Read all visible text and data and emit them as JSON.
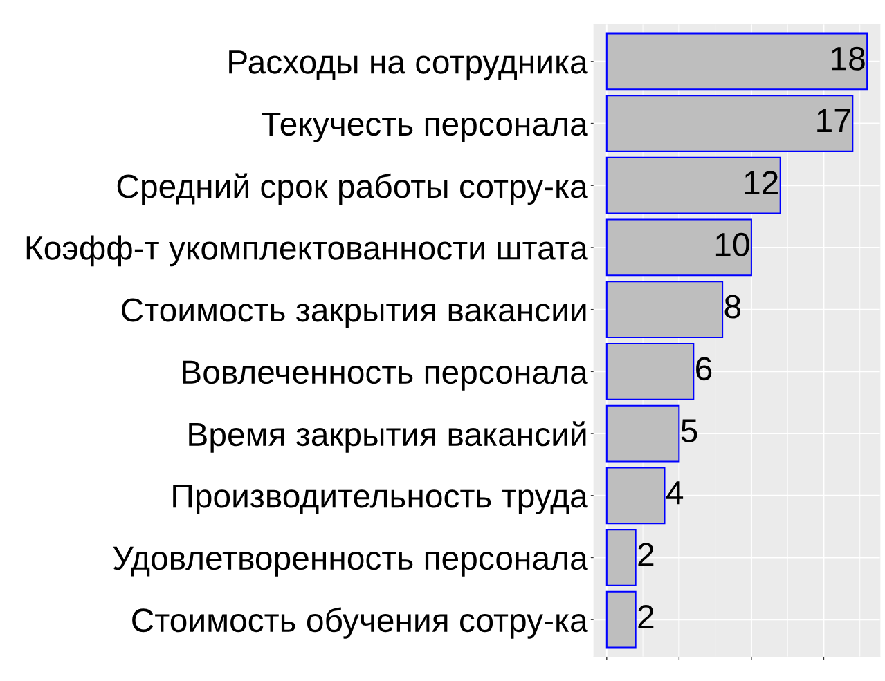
{
  "chart_data": {
    "type": "bar",
    "orientation": "horizontal",
    "categories": [
      "Расходы на сотрудника",
      "Текучесть персонала",
      "Средний срок работы сотру-ка",
      "Коэфф-т укомплектованности штата",
      "Стоимость закрытия вакансии",
      "Вовлеченность персонала",
      "Время закрытия вакансий",
      "Производительность труда",
      "Удовлетворенность персонала",
      "Стоимость обучения сотру-ка"
    ],
    "values": [
      18,
      17,
      12,
      10,
      8,
      6,
      5,
      4,
      2,
      2
    ],
    "color": "#bebebe",
    "xlim": [
      -0.9,
      18.9
    ],
    "xticks": [
      {
        "value": 0,
        "label": null
      },
      {
        "value": 5,
        "label": null
      },
      {
        "value": 10,
        "label": null
      },
      {
        "value": 15,
        "label": null
      }
    ],
    "tick_labels": "y",
    "grid": true,
    "data_labels": true
  }
}
